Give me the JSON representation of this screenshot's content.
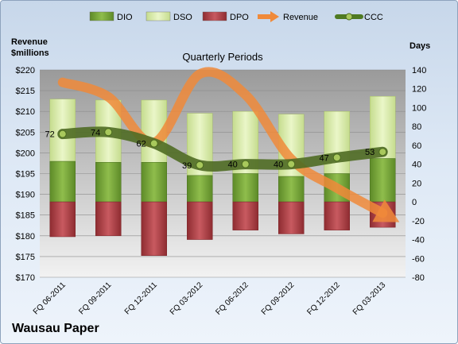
{
  "chart_data": {
    "type": "bar",
    "title": "Quarterly Periods",
    "company": "Wausau Paper",
    "left_axis_label_line1": "Revenue",
    "left_axis_label_line2": "$millions",
    "right_axis_label": "Days",
    "categories": [
      "FQ 06-2011",
      "FQ 09-2011",
      "FQ 12-2011",
      "FQ 03-2012",
      "FQ 06-2012",
      "FQ 09-2012",
      "FQ 12-2012",
      "FQ 03-2013"
    ],
    "left_axis": {
      "min": 170,
      "max": 220,
      "step": 5,
      "prefix": "$"
    },
    "right_axis": {
      "min": -80,
      "max": 140,
      "step": 20
    },
    "legend": {
      "position": "top",
      "items": [
        {
          "key": "dio",
          "label": "DIO",
          "color": "#77a33c"
        },
        {
          "key": "dso",
          "label": "DSO",
          "color": "#d6eaaa"
        },
        {
          "key": "dpo",
          "label": "DPO",
          "color": "#b8464c"
        },
        {
          "key": "revenue",
          "label": "Revenue",
          "color": "#f08a3a"
        },
        {
          "key": "ccc",
          "label": "CCC",
          "color": "#4f7a22"
        }
      ]
    },
    "series": [
      {
        "name": "DIO",
        "axis": "right",
        "values": [
          43,
          42,
          42,
          28,
          30,
          27,
          30,
          46
        ]
      },
      {
        "name": "DSO",
        "axis": "right",
        "values": [
          66,
          66,
          66,
          66,
          66,
          66,
          66,
          66
        ]
      },
      {
        "name": "DPO",
        "axis": "right",
        "values": [
          -37,
          -36,
          -57,
          -40,
          -30,
          -34,
          -30,
          -27
        ]
      },
      {
        "name": "Revenue",
        "axis": "left",
        "values": [
          217,
          213.5,
          202.5,
          219,
          214,
          198.5,
          191.5,
          185.5
        ]
      },
      {
        "name": "CCC",
        "axis": "right",
        "values": [
          72,
          74,
          62,
          39,
          40,
          40,
          47,
          53
        ]
      }
    ],
    "data_labels": [
      "72",
      "74",
      "62",
      "39",
      "40",
      "40",
      "47",
      "53"
    ],
    "grid": true
  }
}
